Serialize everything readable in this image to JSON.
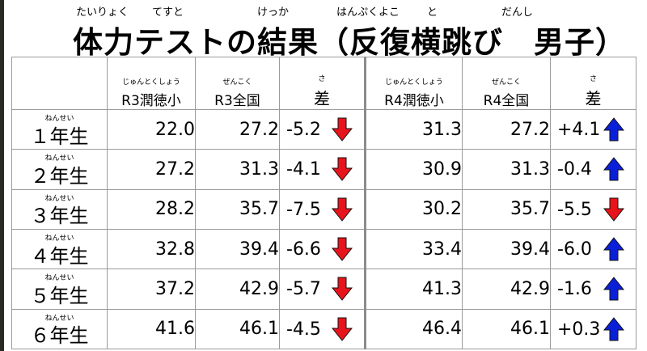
{
  "title": {
    "text": "体力テストの結果（反復横跳び　男子）",
    "ruby": [
      "たいりょく",
      "てすと",
      "けっか",
      "はんぷくよこ",
      "と",
      "だんし"
    ]
  },
  "header": {
    "r3_school": {
      "ruby": "じゅんとくしょう",
      "label": "R3潤徳小"
    },
    "r3_national": {
      "ruby": "ぜんこく",
      "label": "R3全国"
    },
    "r3_diff": {
      "ruby": "さ",
      "label": "差"
    },
    "r4_school": {
      "ruby": "じゅんとくしょう",
      "label": "R4潤徳小"
    },
    "r4_national": {
      "ruby": "ぜんこく",
      "label": "R4全国"
    },
    "r4_diff": {
      "ruby": "さ",
      "label": "差"
    }
  },
  "colors": {
    "down": "#e8141b",
    "up": "#0a20d8"
  },
  "rows": [
    {
      "ruby": "ねんせい",
      "grade": "１年生",
      "r3_school": "22.0",
      "r3_national": "27.2",
      "r3_diff": "-5.2",
      "r3_dir": "down",
      "r4_school": "31.3",
      "r4_national": "27.2",
      "r4_diff": "+4.1",
      "r4_dir": "up"
    },
    {
      "ruby": "ねんせい",
      "grade": "２年生",
      "r3_school": "27.2",
      "r3_national": "31.3",
      "r3_diff": "-4.1",
      "r3_dir": "down",
      "r4_school": "30.9",
      "r4_national": "31.3",
      "r4_diff": "-0.4",
      "r4_dir": "up"
    },
    {
      "ruby": "ねんせい",
      "grade": "３年生",
      "r3_school": "28.2",
      "r3_national": "35.7",
      "r3_diff": "-7.5",
      "r3_dir": "down",
      "r4_school": "30.2",
      "r4_national": "35.7",
      "r4_diff": "-5.5",
      "r4_dir": "down"
    },
    {
      "ruby": "ねんせい",
      "grade": "４年生",
      "r3_school": "32.8",
      "r3_national": "39.4",
      "r3_diff": "-6.6",
      "r3_dir": "down",
      "r4_school": "33.4",
      "r4_national": "39.4",
      "r4_diff": "-6.0",
      "r4_dir": "up"
    },
    {
      "ruby": "ねんせい",
      "grade": "５年生",
      "r3_school": "37.2",
      "r3_national": "42.9",
      "r3_diff": "-5.7",
      "r3_dir": "down",
      "r4_school": "41.3",
      "r4_national": "42.9",
      "r4_diff": "-1.6",
      "r4_dir": "up"
    },
    {
      "ruby": "ねんせい",
      "grade": "６年生",
      "r3_school": "41.6",
      "r3_national": "46.1",
      "r3_diff": "-4.5",
      "r3_dir": "down",
      "r4_school": "46.4",
      "r4_national": "46.1",
      "r4_diff": "+0.3",
      "r4_dir": "up"
    }
  ]
}
